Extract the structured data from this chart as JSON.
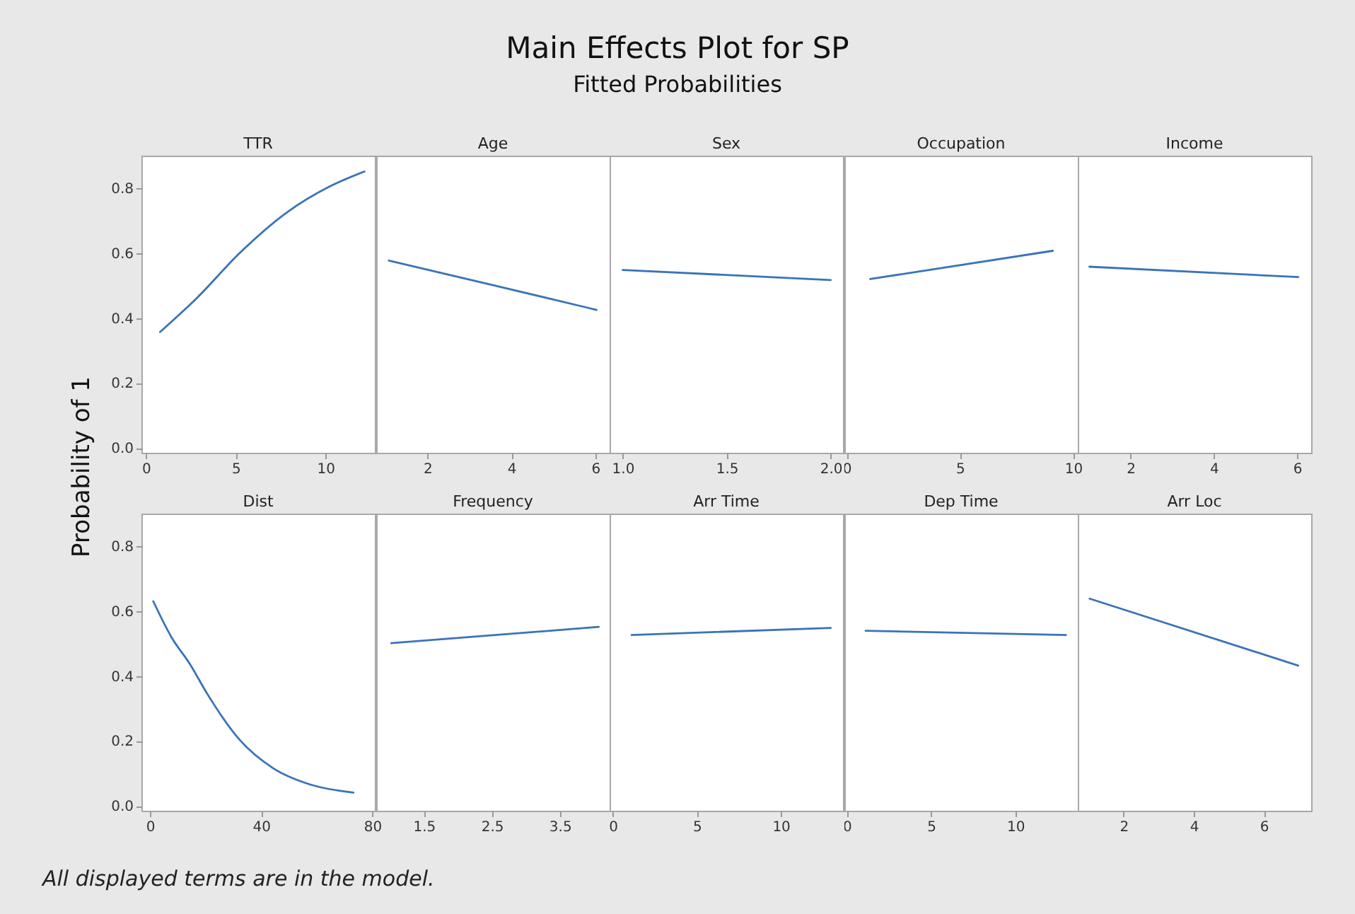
{
  "chart_data": [
    {
      "type": "other",
      "title": "Main Effects Plot for SP",
      "subtitle": "Fitted Probabilities",
      "ylabel": "Probability of 1",
      "annotations": [
        "All displayed terms are in the model."
      ]
    },
    {
      "type": "line",
      "title": "TTR",
      "color": "#3b73b9",
      "x": [
        0.79,
        2.88,
        5.24,
        7.85,
        10.2,
        12.17
      ],
      "values": [
        0.357,
        0.464,
        0.601,
        0.725,
        0.804,
        0.851
      ],
      "xlim": [
        -0.25,
        12.75
      ],
      "xticks": [
        0,
        5,
        10
      ],
      "ylim": [
        -0.015,
        0.9
      ],
      "yticks": [
        {
          "value": 0,
          "label": "0.0"
        },
        0.2,
        0.4,
        0.6,
        0.8
      ]
    },
    {
      "type": "line",
      "title": "Age",
      "color": "#3b73b9",
      "x": [
        1.08,
        3.6,
        6.03
      ],
      "values": [
        0.577,
        0.5,
        0.425
      ],
      "xlim": [
        0.78,
        6.34
      ],
      "xticks": [
        2,
        4,
        6
      ],
      "ylim": [
        -0.015,
        0.9
      ],
      "tick_labels": "x"
    },
    {
      "type": "line",
      "title": "Sex",
      "color": "#3b73b9",
      "x": [
        1.0,
        2.0
      ],
      "values": [
        0.548,
        0.517
      ],
      "xlim": [
        0.937,
        2.059
      ],
      "xticks": [
        {
          "value": 1,
          "label": "1.0"
        },
        1.5,
        {
          "value": 2,
          "label": "2.0"
        }
      ],
      "ylim": [
        -0.015,
        0.9
      ],
      "tick_labels": "x"
    },
    {
      "type": "line",
      "title": "Occupation",
      "color": "#3b73b9",
      "x": [
        1.04,
        9.1
      ],
      "values": [
        0.52,
        0.607
      ],
      "xlim": [
        -0.1,
        10.2
      ],
      "xticks": [
        0,
        5,
        10
      ],
      "ylim": [
        -0.015,
        0.9
      ],
      "tick_labels": "x"
    },
    {
      "type": "line",
      "title": "Income",
      "color": "#3b73b9",
      "x": [
        1.01,
        6.03
      ],
      "values": [
        0.558,
        0.526
      ],
      "xlim": [
        0.73,
        6.34
      ],
      "xticks": [
        2,
        4,
        6
      ],
      "ylim": [
        -0.015,
        0.9
      ],
      "tick_labels": "x"
    },
    {
      "type": "line",
      "title": "Dist",
      "color": "#3b73b9",
      "x": [
        1.19,
        7.7,
        14.5,
        20.4,
        32.3,
        44.3,
        57.9,
        73.2
      ],
      "values": [
        0.63,
        0.52,
        0.435,
        0.348,
        0.203,
        0.116,
        0.065,
        0.041
      ],
      "xlim": [
        -3.06,
        80.9
      ],
      "xticks": [
        0,
        40,
        80
      ],
      "ylim": [
        -0.015,
        0.9
      ],
      "yticks": [
        {
          "value": 0,
          "label": "0.0"
        },
        0.2,
        0.4,
        0.6,
        0.8
      ]
    },
    {
      "type": "line",
      "title": "Frequency",
      "color": "#3b73b9",
      "x": [
        1.02,
        4.07
      ],
      "values": [
        0.501,
        0.551
      ],
      "xlim": [
        0.8,
        4.23
      ],
      "xticks": [
        1.5,
        2.5,
        3.5
      ],
      "ylim": [
        -0.015,
        0.9
      ],
      "tick_labels": "x"
    },
    {
      "type": "line",
      "title": "Arr Time",
      "color": "#3b73b9",
      "x": [
        1.12,
        12.97
      ],
      "values": [
        0.526,
        0.548
      ],
      "xlim": [
        -0.19,
        13.7
      ],
      "xticks": [
        0,
        5,
        10
      ],
      "ylim": [
        -0.015,
        0.9
      ],
      "tick_labels": "x"
    },
    {
      "type": "line",
      "title": "Dep Time",
      "color": "#3b73b9",
      "x": [
        1.12,
        13.0
      ],
      "values": [
        0.539,
        0.526
      ],
      "xlim": [
        -0.14,
        13.7
      ],
      "xticks": [
        0,
        5,
        10
      ],
      "ylim": [
        -0.015,
        0.9
      ],
      "tick_labels": "x"
    },
    {
      "type": "line",
      "title": "Arr Loc",
      "color": "#3b73b9",
      "x": [
        1.03,
        6.98
      ],
      "values": [
        0.638,
        0.432
      ],
      "xlim": [
        0.69,
        7.35
      ],
      "xticks": [
        2,
        4,
        6
      ],
      "ylim": [
        -0.015,
        0.9
      ],
      "tick_labels": "x"
    }
  ]
}
